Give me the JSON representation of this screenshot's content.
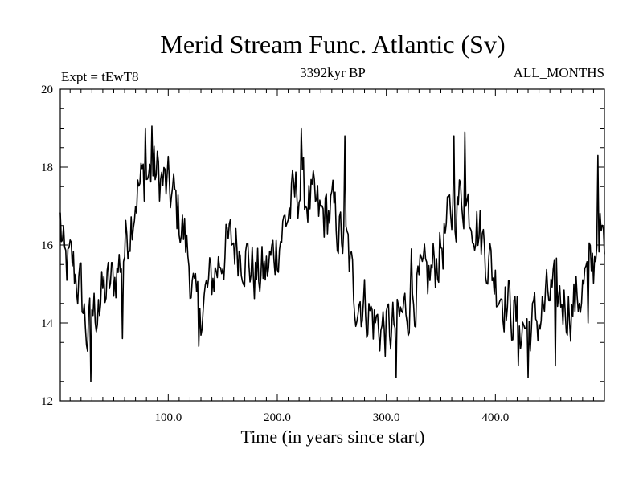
{
  "chart_data": {
    "type": "line",
    "title": "Merid Stream Func. Atlantic (Sv)",
    "subtitle_left": "Expt = tEwT8",
    "subtitle_center": "3392kyr BP",
    "subtitle_right": "ALL_MONTHS",
    "xlabel": "Time (in years since start)",
    "ylabel": "",
    "xlim": [
      1,
      500
    ],
    "ylim": [
      12,
      20
    ],
    "x_major_ticks": [
      100,
      200,
      300,
      400
    ],
    "x_tick_labels": [
      "100.0",
      "200.0",
      "300.0",
      "400.0"
    ],
    "x_minor_step": 10,
    "y_major_ticks": [
      12,
      14,
      16,
      18,
      20
    ],
    "y_tick_labels": [
      "12",
      "14",
      "16",
      "18",
      "20"
    ],
    "y_minor_step": 0.5,
    "grid": false,
    "line_color": "#000000",
    "series": [
      {
        "name": "Merid Stream Func. Atlantic",
        "anchors": [
          [
            1,
            16.6
          ],
          [
            5,
            15.4
          ],
          [
            12,
            15.5
          ],
          [
            20,
            14.8
          ],
          [
            26,
            13.6
          ],
          [
            30,
            14.2
          ],
          [
            40,
            14.7
          ],
          [
            50,
            15.1
          ],
          [
            60,
            15.9
          ],
          [
            70,
            17.3
          ],
          [
            80,
            17.8
          ],
          [
            88,
            17.9
          ],
          [
            95,
            17.6
          ],
          [
            105,
            17.2
          ],
          [
            115,
            16.2
          ],
          [
            120,
            15.4
          ],
          [
            125,
            14.3
          ],
          [
            132,
            14.5
          ],
          [
            140,
            15.1
          ],
          [
            150,
            15.8
          ],
          [
            160,
            16.1
          ],
          [
            170,
            15.8
          ],
          [
            180,
            15.2
          ],
          [
            190,
            15.3
          ],
          [
            200,
            16.0
          ],
          [
            210,
            16.8
          ],
          [
            220,
            17.5
          ],
          [
            230,
            17.1
          ],
          [
            240,
            16.7
          ],
          [
            250,
            16.9
          ],
          [
            260,
            16.1
          ],
          [
            265,
            15.8
          ],
          [
            270,
            14.8
          ],
          [
            280,
            14.5
          ],
          [
            290,
            14.0
          ],
          [
            300,
            13.8
          ],
          [
            310,
            13.9
          ],
          [
            320,
            14.5
          ],
          [
            330,
            14.9
          ],
          [
            340,
            15.2
          ],
          [
            350,
            15.9
          ],
          [
            360,
            16.8
          ],
          [
            370,
            17.3
          ],
          [
            380,
            16.8
          ],
          [
            390,
            16.0
          ],
          [
            400,
            15.1
          ],
          [
            410,
            14.6
          ],
          [
            420,
            14.0
          ],
          [
            430,
            13.9
          ],
          [
            440,
            14.1
          ],
          [
            450,
            14.7
          ],
          [
            460,
            14.6
          ],
          [
            470,
            14.4
          ],
          [
            480,
            14.9
          ],
          [
            490,
            15.5
          ],
          [
            495,
            16.6
          ],
          [
            500,
            15.6
          ]
        ],
        "noise_amplitude": 0.75,
        "spikes": [
          [
            29,
            12.5
          ],
          [
            36,
            14.6
          ],
          [
            58,
            13.6
          ],
          [
            79,
            19.0
          ],
          [
            85,
            19.05
          ],
          [
            128,
            13.4
          ],
          [
            222,
            19.0
          ],
          [
            262,
            18.8
          ],
          [
            309,
            12.6
          ],
          [
            323,
            15.9
          ],
          [
            362,
            18.8
          ],
          [
            372,
            18.9
          ],
          [
            421,
            12.9
          ],
          [
            430,
            12.6
          ],
          [
            455,
            12.9
          ],
          [
            485,
            14.0
          ],
          [
            494,
            18.3
          ]
        ]
      }
    ]
  }
}
